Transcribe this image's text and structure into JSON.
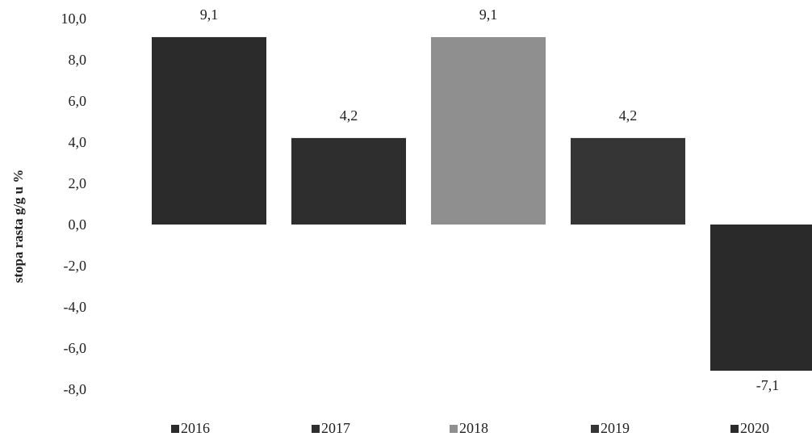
{
  "chart_data": {
    "type": "bar",
    "categories": [
      "2016",
      "2017",
      "2018",
      "2019",
      "2020"
    ],
    "values": [
      9.1,
      4.2,
      9.1,
      4.2,
      -7.1
    ],
    "data_labels": [
      "9,1",
      "4,2",
      "9,1",
      "4,2",
      "-7,1"
    ],
    "title": "",
    "xlabel": "",
    "ylabel": "stopa rasta g/g u %",
    "ylim": [
      -8.0,
      10.0
    ],
    "yticks": [
      10.0,
      8.0,
      6.0,
      4.0,
      2.0,
      0.0,
      -2.0,
      -4.0,
      -6.0,
      -8.0
    ],
    "ytick_labels": [
      "10,0",
      "8,0",
      "6,0",
      "4,0",
      "2,0",
      "0,0",
      "-2,0",
      "-4,0",
      "-6,0",
      "-8,0"
    ],
    "grid": false,
    "legend": {
      "placement": "bottom",
      "entries": [
        "2016",
        "2017",
        "2018",
        "2019",
        "2020"
      ]
    },
    "colors": [
      "#2b2b2b",
      "#2e2e2e",
      "#8f8f8f",
      "#353535",
      "#2a2a2a"
    ]
  }
}
